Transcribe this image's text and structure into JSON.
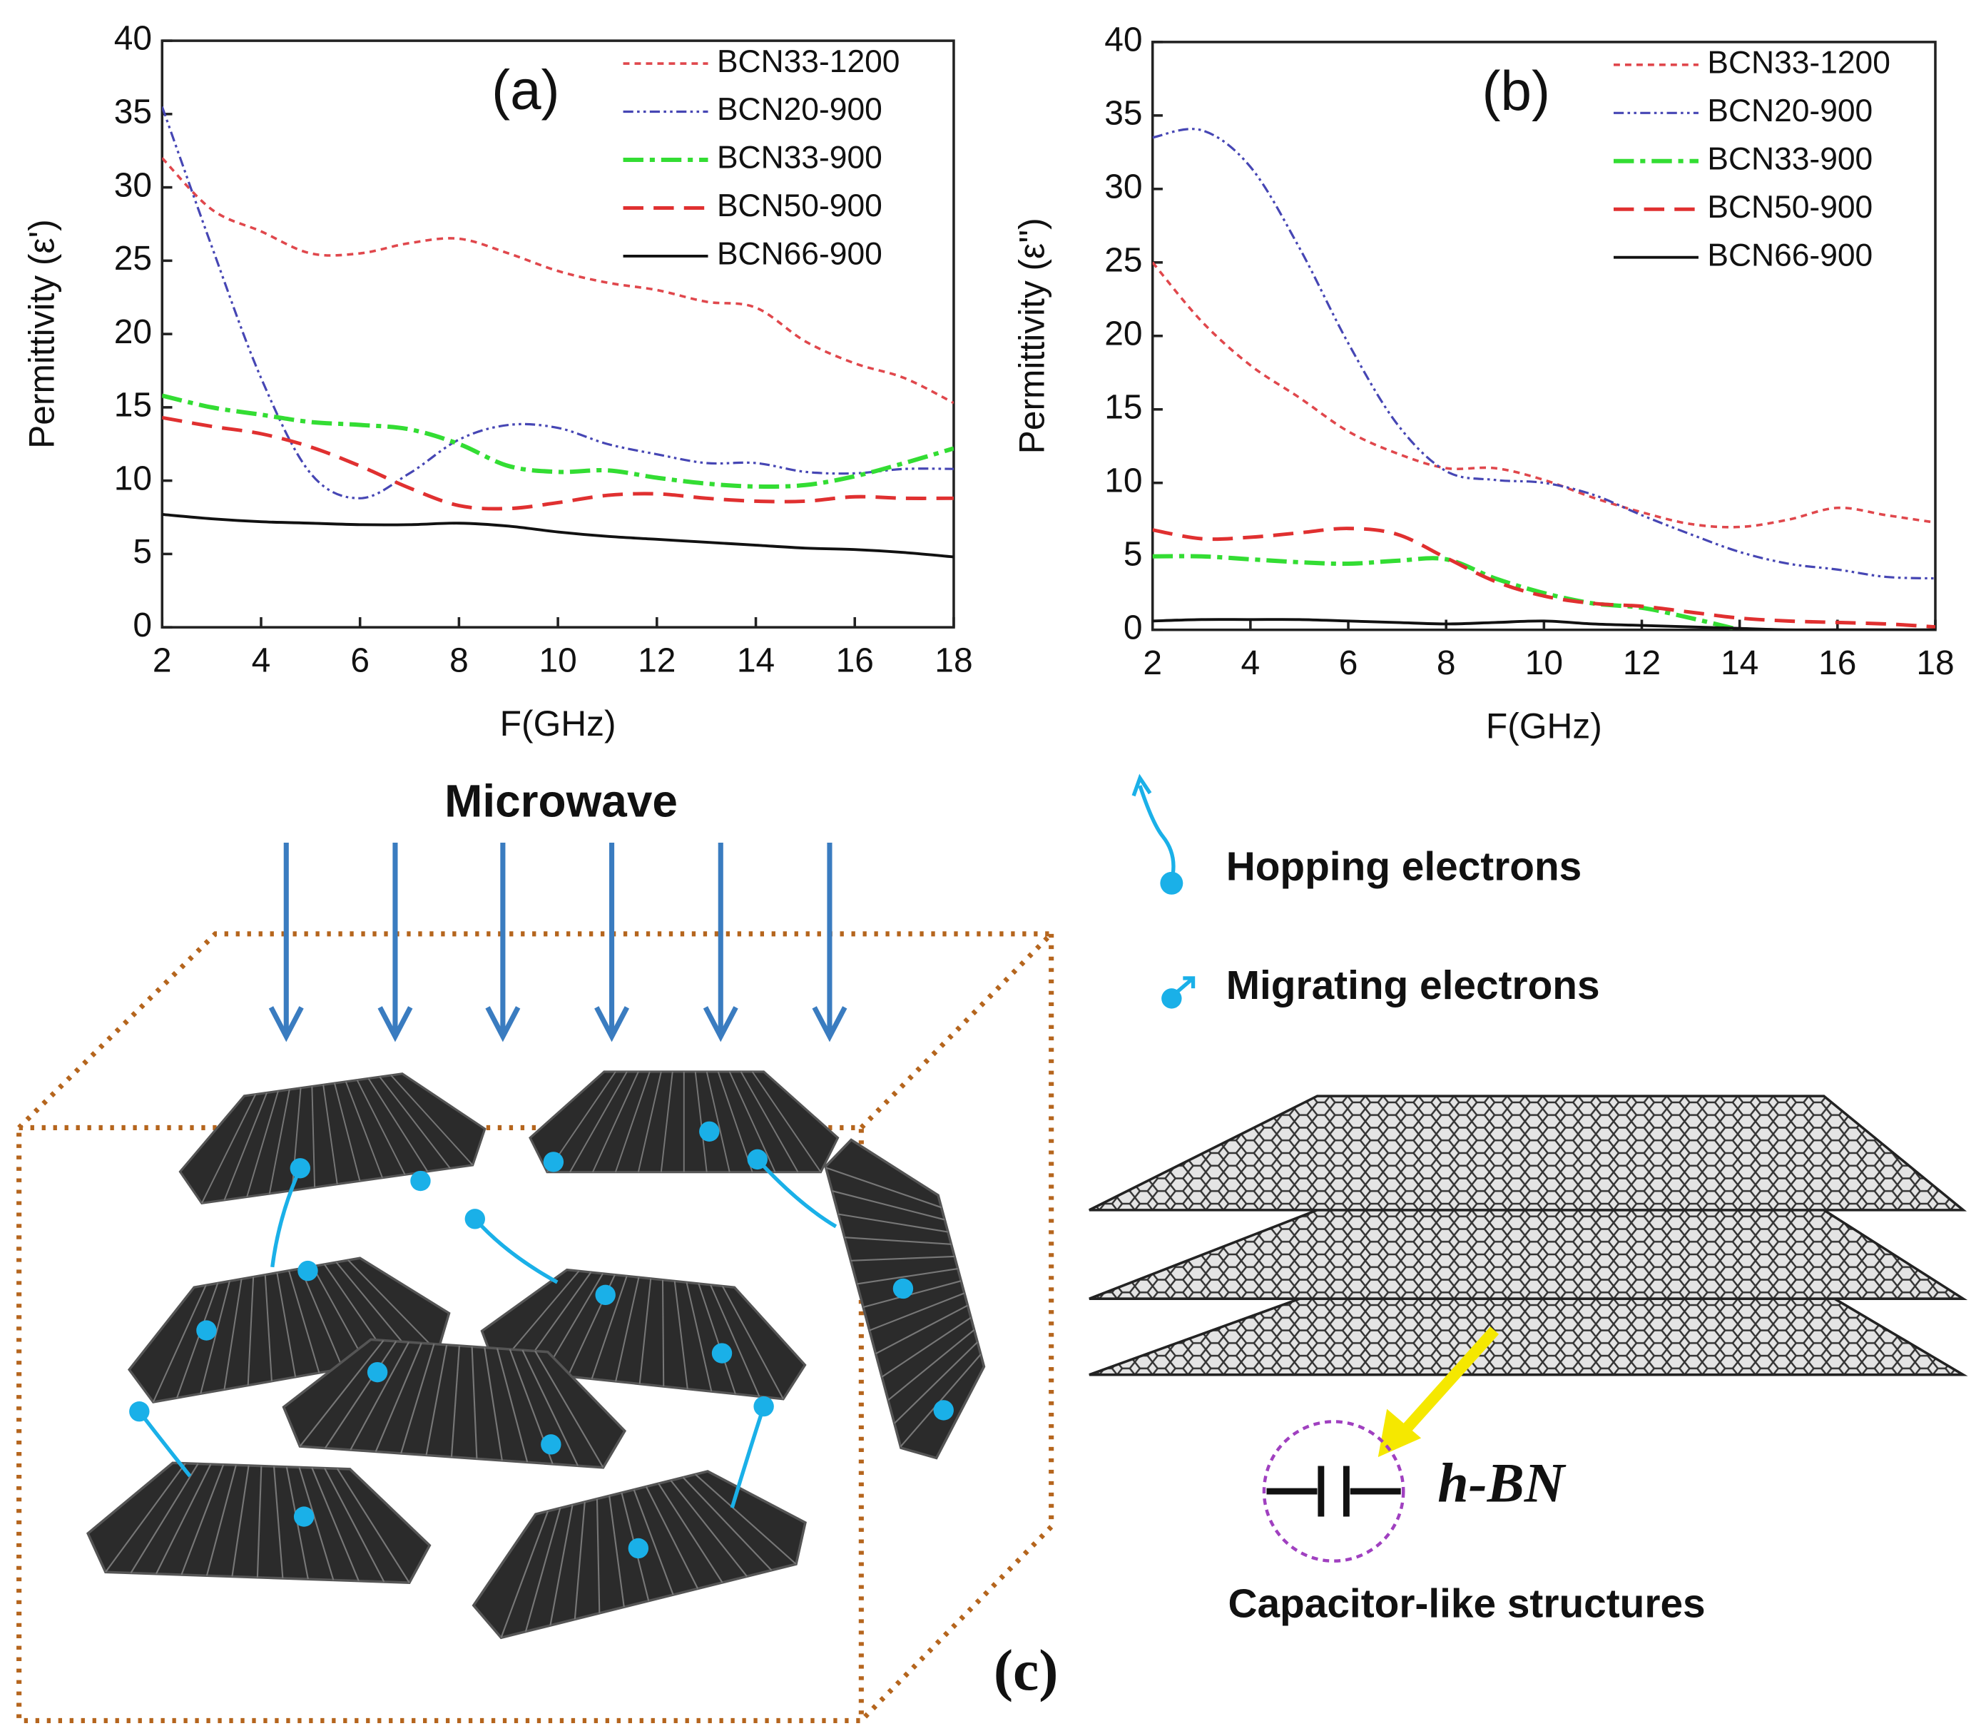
{
  "chart_data": [
    {
      "type": "line",
      "annotation": "(a)",
      "xlabel": "F(GHz)",
      "ylabel": "Permittivity (ε')",
      "x": [
        2,
        3,
        4,
        5,
        6,
        7,
        8,
        9,
        10,
        11,
        12,
        13,
        14,
        15,
        16,
        17,
        18
      ],
      "xlim": [
        2,
        18
      ],
      "xticks": [
        2,
        4,
        6,
        8,
        10,
        12,
        14,
        16,
        18
      ],
      "ylim": [
        0,
        40
      ],
      "yticks": [
        0,
        5,
        10,
        15,
        20,
        25,
        30,
        35,
        40
      ],
      "legend": "upper right",
      "series": [
        {
          "name": "BCN33-1200",
          "color": "#e0474c",
          "linestyle": "dotted",
          "values": [
            32,
            28.5,
            27,
            25.5,
            25.5,
            26.2,
            26.5,
            25.5,
            24.3,
            23.5,
            23,
            22.2,
            21.8,
            19.5,
            18,
            17,
            15.3
          ]
        },
        {
          "name": "BCN20-900",
          "color": "#4646b4",
          "linestyle": "dashdotdot",
          "values": [
            35.5,
            26,
            17,
            10.5,
            8.8,
            10.5,
            12.8,
            13.8,
            13.6,
            12.5,
            11.8,
            11.2,
            11.2,
            10.6,
            10.5,
            10.8,
            10.8
          ]
        },
        {
          "name": "BCN33-900",
          "color": "#33dd33",
          "linestyle": "dashdot",
          "values": [
            15.8,
            15,
            14.5,
            14,
            13.8,
            13.5,
            12.5,
            11,
            10.6,
            10.7,
            10.2,
            9.8,
            9.6,
            9.7,
            10.3,
            11.2,
            12.2
          ]
        },
        {
          "name": "BCN50-900",
          "color": "#e03030",
          "linestyle": "dashed",
          "values": [
            14.3,
            13.7,
            13.2,
            12.3,
            11,
            9.5,
            8.3,
            8.1,
            8.5,
            9,
            9.1,
            8.8,
            8.6,
            8.6,
            8.9,
            8.8,
            8.8
          ]
        },
        {
          "name": "BCN66-900",
          "color": "#111111",
          "linestyle": "solid",
          "values": [
            7.7,
            7.4,
            7.2,
            7.1,
            7,
            7,
            7.1,
            6.9,
            6.5,
            6.2,
            6,
            5.8,
            5.6,
            5.4,
            5.3,
            5.1,
            4.8
          ]
        }
      ]
    },
    {
      "type": "line",
      "annotation": "(b)",
      "xlabel": "F(GHz)",
      "ylabel": "Permittivity (ε'')",
      "x": [
        2,
        3,
        4,
        5,
        6,
        7,
        8,
        9,
        10,
        11,
        12,
        13,
        14,
        15,
        16,
        17,
        18
      ],
      "xlim": [
        2,
        18
      ],
      "xticks": [
        2,
        4,
        6,
        8,
        10,
        12,
        14,
        16,
        18
      ],
      "ylim": [
        0,
        40
      ],
      "yticks": [
        0,
        5,
        10,
        15,
        20,
        25,
        30,
        35,
        40
      ],
      "legend": "upper right",
      "series": [
        {
          "name": "BCN33-1200",
          "color": "#e0474c",
          "linestyle": "dotted",
          "values": [
            25,
            21,
            18,
            15.8,
            13.5,
            12,
            11,
            11,
            10.2,
            9,
            8,
            7.2,
            7,
            7.5,
            8.3,
            7.8,
            7.3
          ]
        },
        {
          "name": "BCN20-900",
          "color": "#4646b4",
          "linestyle": "dashdotdot",
          "values": [
            33.5,
            34,
            31.5,
            26,
            19.5,
            14,
            10.8,
            10.2,
            10,
            9.2,
            7.8,
            6.5,
            5.3,
            4.5,
            4.1,
            3.6,
            3.5
          ]
        },
        {
          "name": "BCN33-900",
          "color": "#33dd33",
          "linestyle": "dashdot",
          "values": [
            5,
            5,
            4.8,
            4.6,
            4.5,
            4.7,
            4.8,
            3.5,
            2.5,
            1.8,
            1.5,
            0.8,
            0,
            null,
            null,
            null,
            null
          ]
        },
        {
          "name": "BCN50-900",
          "color": "#e03030",
          "linestyle": "dashed",
          "values": [
            6.8,
            6.2,
            6.3,
            6.6,
            6.9,
            6.5,
            4.9,
            3.3,
            2.3,
            1.8,
            1.6,
            1.2,
            0.8,
            0.6,
            0.5,
            0.4,
            0.2
          ]
        },
        {
          "name": "BCN66-900",
          "color": "#111111",
          "linestyle": "solid",
          "values": [
            0.6,
            0.7,
            0.7,
            0.7,
            0.6,
            0.5,
            0.4,
            0.5,
            0.6,
            0.4,
            0.3,
            0.2,
            0.1,
            0,
            0,
            0,
            0
          ]
        }
      ]
    }
  ],
  "diagram": {
    "title": "Microwave",
    "hopping": "Hopping electrons",
    "migrating": "Migrating electrons",
    "material": "h-BN",
    "caption": "Capacitor-like structures",
    "label": "(c)"
  }
}
